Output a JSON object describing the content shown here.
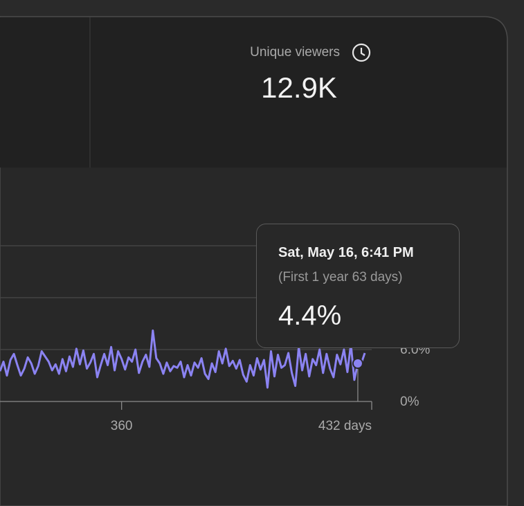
{
  "header": {
    "metric_label": "Unique viewers",
    "metric_value": "12.9K"
  },
  "chart_data": {
    "type": "line",
    "x": [
      325,
      326,
      327,
      328,
      329,
      330,
      331,
      332,
      333,
      334,
      335,
      336,
      337,
      338,
      339,
      340,
      341,
      342,
      343,
      344,
      345,
      346,
      347,
      348,
      349,
      350,
      351,
      352,
      353,
      354,
      355,
      356,
      357,
      358,
      359,
      360,
      361,
      362,
      363,
      364,
      365,
      366,
      367,
      368,
      369,
      370,
      371,
      372,
      373,
      374,
      375,
      376,
      377,
      378,
      379,
      380,
      381,
      382,
      383,
      384,
      385,
      386,
      387,
      388,
      389,
      390,
      391,
      392,
      393,
      394,
      395,
      396,
      397,
      398,
      399,
      400,
      401,
      402,
      403,
      404,
      405,
      406,
      407,
      408,
      409,
      410,
      411,
      412,
      413,
      414,
      415,
      416,
      417,
      418,
      419,
      420,
      421,
      422,
      423,
      424,
      425,
      426,
      427,
      428,
      429,
      430
    ],
    "series": [
      {
        "color": "#8b83f2",
        "values": [
          3.5,
          4.6,
          3.0,
          4.8,
          5.5,
          4.2,
          3.0,
          3.8,
          5.1,
          4.4,
          3.2,
          4.1,
          5.8,
          5.2,
          4.6,
          3.6,
          4.3,
          3.2,
          4.9,
          3.5,
          5.2,
          4.0,
          6.1,
          4.3,
          5.9,
          3.8,
          4.5,
          5.5,
          2.8,
          4.2,
          5.5,
          4.2,
          6.3,
          3.6,
          5.8,
          4.9,
          3.7,
          5.1,
          4.6,
          6.0,
          3.3,
          4.6,
          5.4,
          4.0,
          8.2,
          5.0,
          4.4,
          3.2,
          4.5,
          3.5,
          4.1,
          3.9,
          4.6,
          2.8,
          4.2,
          3.0,
          4.5,
          3.9,
          5.0,
          3.2,
          2.6,
          4.4,
          3.4,
          5.8,
          4.4,
          6.1,
          4.1,
          4.7,
          3.8,
          4.8,
          3.1,
          2.3,
          4.2,
          3.0,
          5.0,
          3.7,
          4.8,
          1.6,
          5.8,
          2.9,
          5.4,
          3.9,
          4.2,
          5.6,
          3.3,
          1.8,
          6.3,
          3.6,
          5.5,
          2.9,
          4.9,
          4.2,
          6.0,
          3.3,
          5.5,
          3.8,
          2.8,
          5.4,
          4.3,
          6.0,
          3.4,
          6.6,
          2.5,
          4.4,
          4.4,
          5.6
        ]
      }
    ],
    "xlim": [
      325,
      432
    ],
    "xticks": [
      {
        "value": 360,
        "label": "360"
      },
      {
        "value": 432,
        "label": "432 days"
      }
    ],
    "ylim": [
      0,
      18
    ],
    "yticks": [
      {
        "value": 0,
        "label": "0%"
      },
      {
        "value": 6,
        "label": "6.0%"
      },
      12,
      18
    ],
    "grid": true,
    "tooltip": {
      "title": "Sat, May 16, 6:41 PM",
      "subtitle": "(First 1 year 63 days)",
      "value": "4.4%",
      "point": 103
    }
  }
}
